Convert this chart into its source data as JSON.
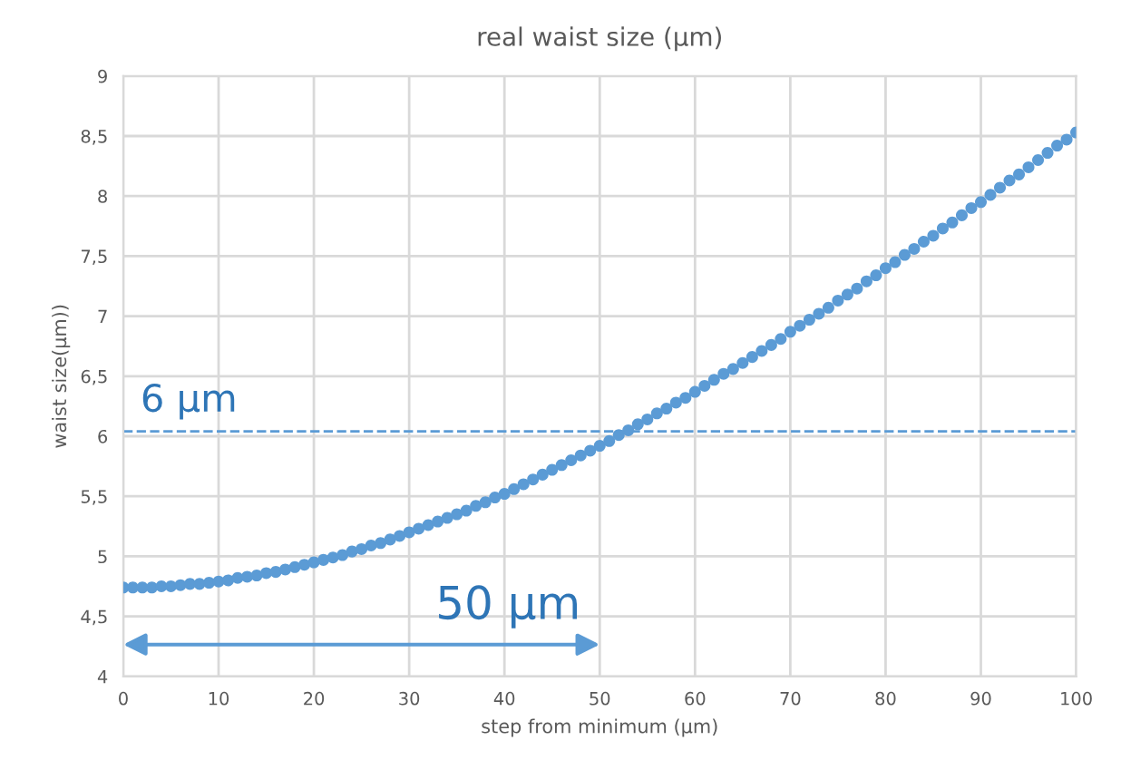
{
  "chart_data": {
    "type": "scatter",
    "title": "real waist size (µm)",
    "xlabel": "step from minimum (µm)",
    "ylabel": "waist size(µm))",
    "x": [
      0,
      1,
      2,
      3,
      4,
      5,
      6,
      7,
      8,
      9,
      10,
      11,
      12,
      13,
      14,
      15,
      16,
      17,
      18,
      19,
      20,
      21,
      22,
      23,
      24,
      25,
      26,
      27,
      28,
      29,
      30,
      31,
      32,
      33,
      34,
      35,
      36,
      37,
      38,
      39,
      40,
      41,
      42,
      43,
      44,
      45,
      46,
      47,
      48,
      49,
      50,
      51,
      52,
      53,
      54,
      55,
      56,
      57,
      58,
      59,
      60,
      61,
      62,
      63,
      64,
      65,
      66,
      67,
      68,
      69,
      70,
      71,
      72,
      73,
      74,
      75,
      76,
      77,
      78,
      79,
      80,
      81,
      82,
      83,
      84,
      85,
      86,
      87,
      88,
      89,
      90,
      91,
      92,
      93,
      94,
      95,
      96,
      97,
      98,
      99,
      100
    ],
    "series": [
      {
        "color": "#5b9bd5",
        "values": [
          4.74,
          4.74,
          4.74,
          4.74,
          4.75,
          4.75,
          4.76,
          4.77,
          4.77,
          4.78,
          4.79,
          4.8,
          4.82,
          4.83,
          4.84,
          4.86,
          4.87,
          4.89,
          4.91,
          4.93,
          4.95,
          4.97,
          4.99,
          5.01,
          5.04,
          5.06,
          5.09,
          5.11,
          5.14,
          5.17,
          5.2,
          5.23,
          5.26,
          5.29,
          5.32,
          5.35,
          5.38,
          5.42,
          5.45,
          5.49,
          5.52,
          5.56,
          5.6,
          5.64,
          5.68,
          5.72,
          5.76,
          5.8,
          5.84,
          5.88,
          5.92,
          5.96,
          6.01,
          6.05,
          6.1,
          6.14,
          6.19,
          6.23,
          6.28,
          6.32,
          6.37,
          6.42,
          6.47,
          6.52,
          6.56,
          6.61,
          6.66,
          6.71,
          6.76,
          6.81,
          6.87,
          6.92,
          6.97,
          7.02,
          7.07,
          7.13,
          7.18,
          7.23,
          7.29,
          7.34,
          7.4,
          7.45,
          7.51,
          7.56,
          7.62,
          7.67,
          7.73,
          7.78,
          7.84,
          7.9,
          7.95,
          8.01,
          8.07,
          8.13,
          8.18,
          8.24,
          8.3,
          8.36,
          8.42,
          8.47,
          8.53
        ]
      }
    ],
    "xlim": [
      0,
      100
    ],
    "xticks": [
      0,
      10,
      20,
      30,
      40,
      50,
      60,
      70,
      80,
      90,
      100
    ],
    "ylim": [
      4,
      9
    ],
    "yticks": [
      4,
      {
        "value": 4.5,
        "label": "4,5"
      },
      5,
      {
        "value": 5.5,
        "label": "5,5"
      },
      6,
      {
        "value": 6.5,
        "label": "6,5"
      },
      7,
      {
        "value": 7.5,
        "label": "7,5"
      },
      8,
      {
        "value": 8.5,
        "label": "8,5"
      },
      9
    ],
    "ref_lines": [
      {
        "axis": "y",
        "value": 6.04,
        "label": "6 µm",
        "color": "#5b9bd5",
        "line_style": "dashed"
      }
    ],
    "annotations": [
      "50 µm"
    ],
    "grid": true,
    "marker": "circle",
    "legend": false
  }
}
